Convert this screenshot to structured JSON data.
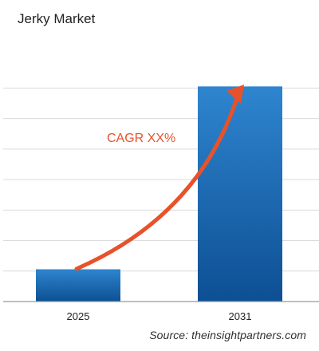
{
  "chart_data": {
    "type": "bar",
    "title": "Jerky Market",
    "categories": [
      "2025",
      "2031"
    ],
    "values": [
      15,
      100
    ],
    "ylim": [
      0,
      112
    ],
    "grid": true,
    "annotation": "CAGR XX%",
    "source": "Source: theinsightpartners.com"
  },
  "colors": {
    "bar_top": "#2e85cf",
    "bar_bottom": "#0d4f93",
    "arrow": "#e8522a",
    "annotation": "#e8522a",
    "grid": "#dcdcdc",
    "axis": "#999999"
  }
}
